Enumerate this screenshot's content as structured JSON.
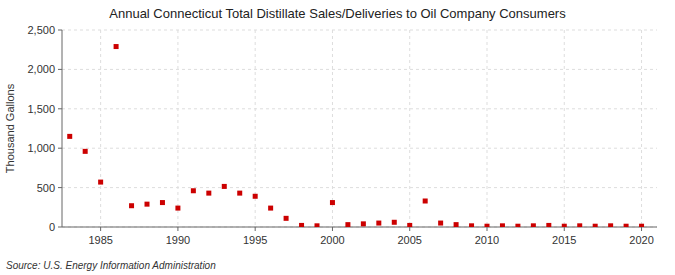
{
  "chart_data": {
    "type": "scatter",
    "title": "Annual Connecticut Total Distillate Sales/Deliveries to Oil Company Consumers",
    "ylabel": "Thousand Gallons",
    "annotations": [
      "Source: U.S. Energy Information Administration"
    ],
    "x": [
      1983,
      1984,
      1985,
      1986,
      1987,
      1988,
      1989,
      1990,
      1991,
      1992,
      1993,
      1994,
      1995,
      1996,
      1997,
      1998,
      1999,
      2000,
      2001,
      2002,
      2003,
      2004,
      2005,
      2006,
      2007,
      2008,
      2009,
      2010,
      2011,
      2012,
      2013,
      2014,
      2015,
      2016,
      2017,
      2018,
      2019,
      2020
    ],
    "values": [
      1150,
      960,
      570,
      2290,
      270,
      290,
      310,
      240,
      460,
      430,
      515,
      430,
      390,
      240,
      110,
      20,
      15,
      310,
      30,
      40,
      50,
      60,
      20,
      330,
      50,
      30,
      15,
      10,
      15,
      10,
      15,
      20,
      10,
      15,
      10,
      15,
      10,
      10
    ],
    "color": "#cc0000",
    "marker": "square",
    "xlim": [
      1982.5,
      2021
    ],
    "xticks": [
      1985,
      1990,
      1995,
      2000,
      2005,
      2010,
      2015,
      2020
    ],
    "ylim": [
      0,
      2500
    ],
    "yticks": [
      0,
      500,
      {
        "value": 1000,
        "label": "1,000"
      },
      {
        "value": 1500,
        "label": "1,500"
      },
      {
        "value": 2000,
        "label": "2,000"
      },
      {
        "value": 2500,
        "label": "2,500"
      }
    ],
    "grid": true
  }
}
